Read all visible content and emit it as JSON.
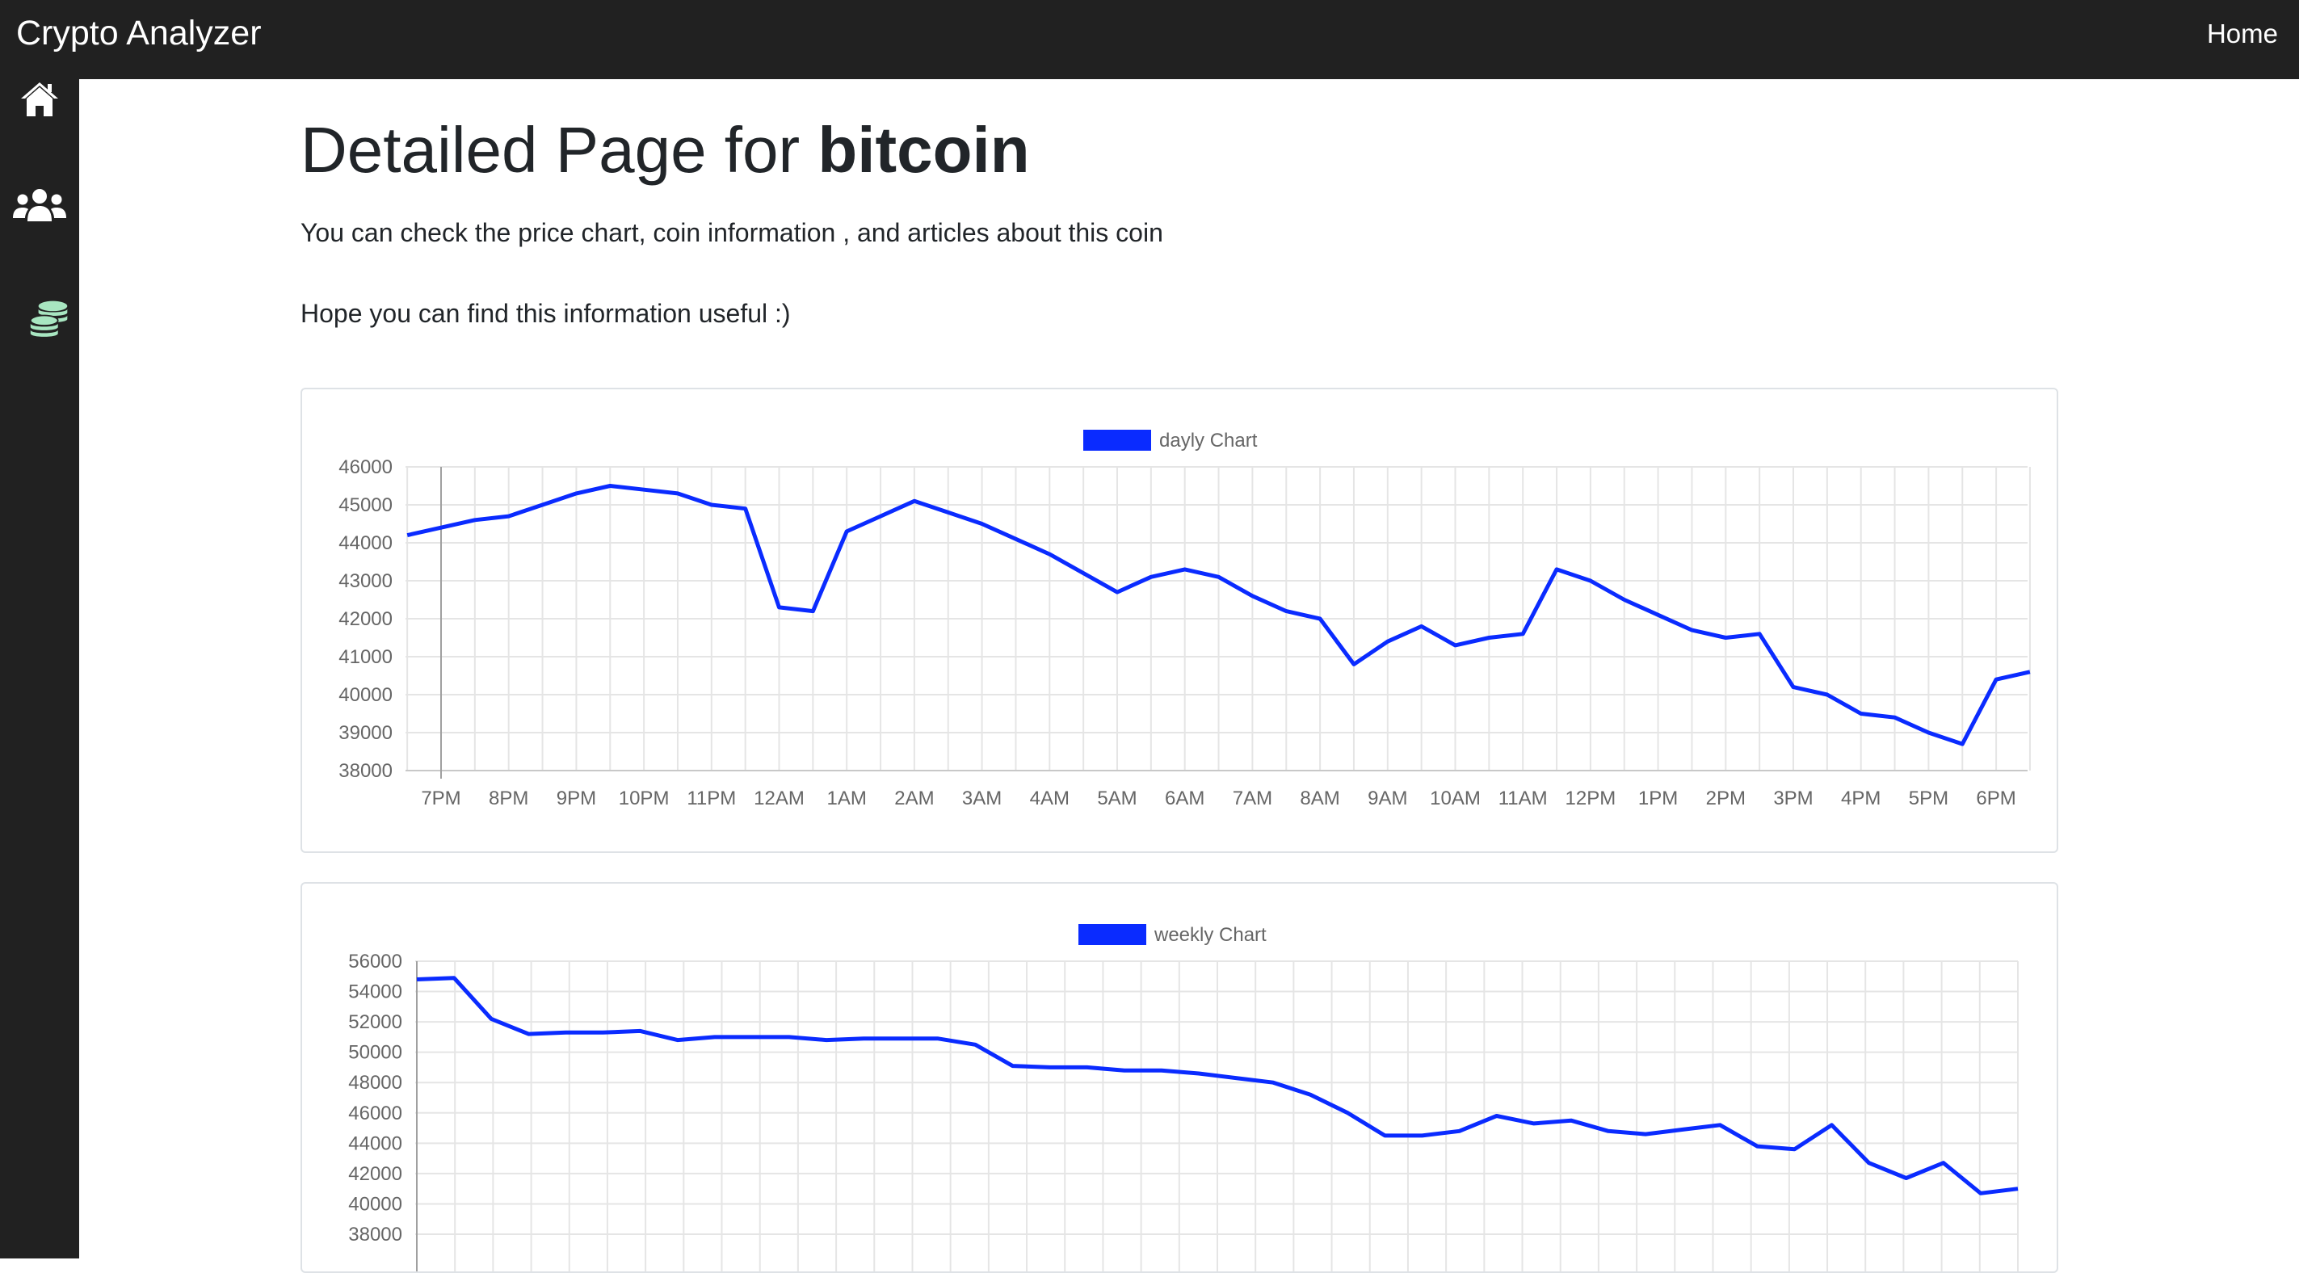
{
  "header": {
    "brand": "Crypto Analyzer",
    "home_label": "Home"
  },
  "sidebar": {
    "items": [
      {
        "icon": "home-icon"
      },
      {
        "icon": "users-icon"
      },
      {
        "icon": "coins-icon",
        "color": "#a8e6c1"
      }
    ]
  },
  "main": {
    "title_prefix": "Detailed Page for",
    "title_coin": "bitcoin",
    "subtitle": "You can check the price chart, coin information , and articles about this coin",
    "note": "Hope you can find this information useful :)"
  },
  "chart_data": [
    {
      "type": "line",
      "legend": "dayly  Chart",
      "color": "#0a2bff",
      "grid": true,
      "legend_position": "top-center",
      "ylim": [
        38000,
        46000
      ],
      "yticks": [
        46000,
        45000,
        44000,
        43000,
        42000,
        41000,
        40000,
        39000,
        38000
      ],
      "xticks": [
        "7PM",
        "8PM",
        "9PM",
        "10PM",
        "11PM",
        "12AM",
        "1AM",
        "2AM",
        "3AM",
        "4AM",
        "5AM",
        "6AM",
        "7AM",
        "8AM",
        "9AM",
        "10AM",
        "11AM",
        "12PM",
        "1PM",
        "2PM",
        "3PM",
        "4PM",
        "5PM",
        "6PM"
      ],
      "x_hours": [
        -0.5,
        0,
        0.5,
        1,
        1.5,
        2,
        2.5,
        3,
        3.5,
        4,
        4.5,
        5,
        5.5,
        6,
        6.5,
        7,
        7.5,
        8,
        8.5,
        9,
        9.5,
        10,
        10.5,
        11,
        11.5,
        12,
        12.5,
        13,
        13.5,
        14,
        14.5,
        15,
        15.5,
        16,
        16.5,
        17,
        17.5,
        18,
        18.5,
        19,
        19.5,
        20,
        20.5,
        21,
        21.5,
        22,
        22.5,
        23,
        23.5
      ],
      "values": [
        44200,
        44400,
        44600,
        44700,
        45000,
        45300,
        45500,
        45400,
        45300,
        45000,
        44900,
        42300,
        42200,
        44300,
        44700,
        45100,
        44800,
        44500,
        44100,
        43700,
        43200,
        42700,
        43100,
        43300,
        43100,
        42600,
        42200,
        42000,
        40800,
        41400,
        41800,
        41300,
        41500,
        41600,
        43300,
        43000,
        42500,
        42100,
        41700,
        41500,
        41600,
        40200,
        40000,
        39500,
        39400,
        39000,
        38700,
        40400,
        40600
      ]
    },
    {
      "type": "line",
      "legend": "weekly  Chart",
      "color": "#0a2bff",
      "grid": true,
      "legend_position": "top-center",
      "ylim": [
        38000,
        56000
      ],
      "yticks": [
        56000,
        54000,
        52000,
        50000,
        48000,
        46000,
        44000,
        42000,
        40000,
        38000
      ],
      "x": [
        0,
        1,
        2,
        3,
        4,
        5,
        6,
        7,
        8,
        9,
        10,
        11,
        12,
        13,
        14,
        15,
        16,
        17,
        18,
        19,
        20,
        21,
        22,
        23,
        24,
        25,
        26,
        27,
        28,
        29,
        30,
        31,
        32,
        33,
        34,
        35,
        36,
        37,
        38,
        39,
        40,
        41,
        42,
        43
      ],
      "values": [
        54800,
        54900,
        52200,
        51200,
        51300,
        51300,
        51400,
        50800,
        51000,
        51000,
        51000,
        50800,
        50900,
        50900,
        50900,
        50500,
        49100,
        49000,
        49000,
        48800,
        48800,
        48600,
        48300,
        48000,
        47200,
        46000,
        44500,
        44500,
        44800,
        45800,
        45300,
        45500,
        44800,
        44600,
        44900,
        45200,
        43800,
        43600,
        45200,
        42700,
        41700,
        42700,
        40700,
        41000
      ]
    }
  ]
}
